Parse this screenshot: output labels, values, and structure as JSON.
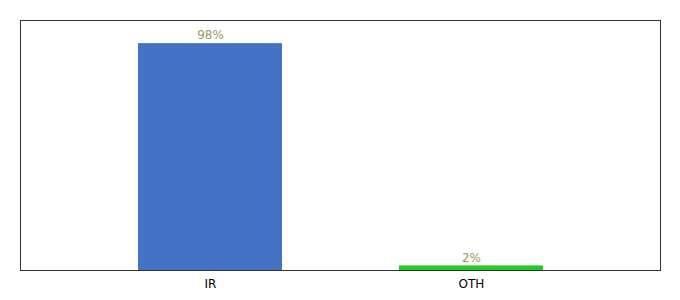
{
  "chart_data": {
    "type": "bar",
    "categories": [
      "IR",
      "OTH"
    ],
    "values": [
      98,
      2
    ],
    "value_labels": [
      "98%",
      "2%"
    ],
    "colors": [
      "#4472c4",
      "#22cc22"
    ],
    "ylim": [
      0,
      108
    ],
    "yticks": [],
    "grid": false,
    "data_labels": true,
    "tick_labels": "x"
  }
}
